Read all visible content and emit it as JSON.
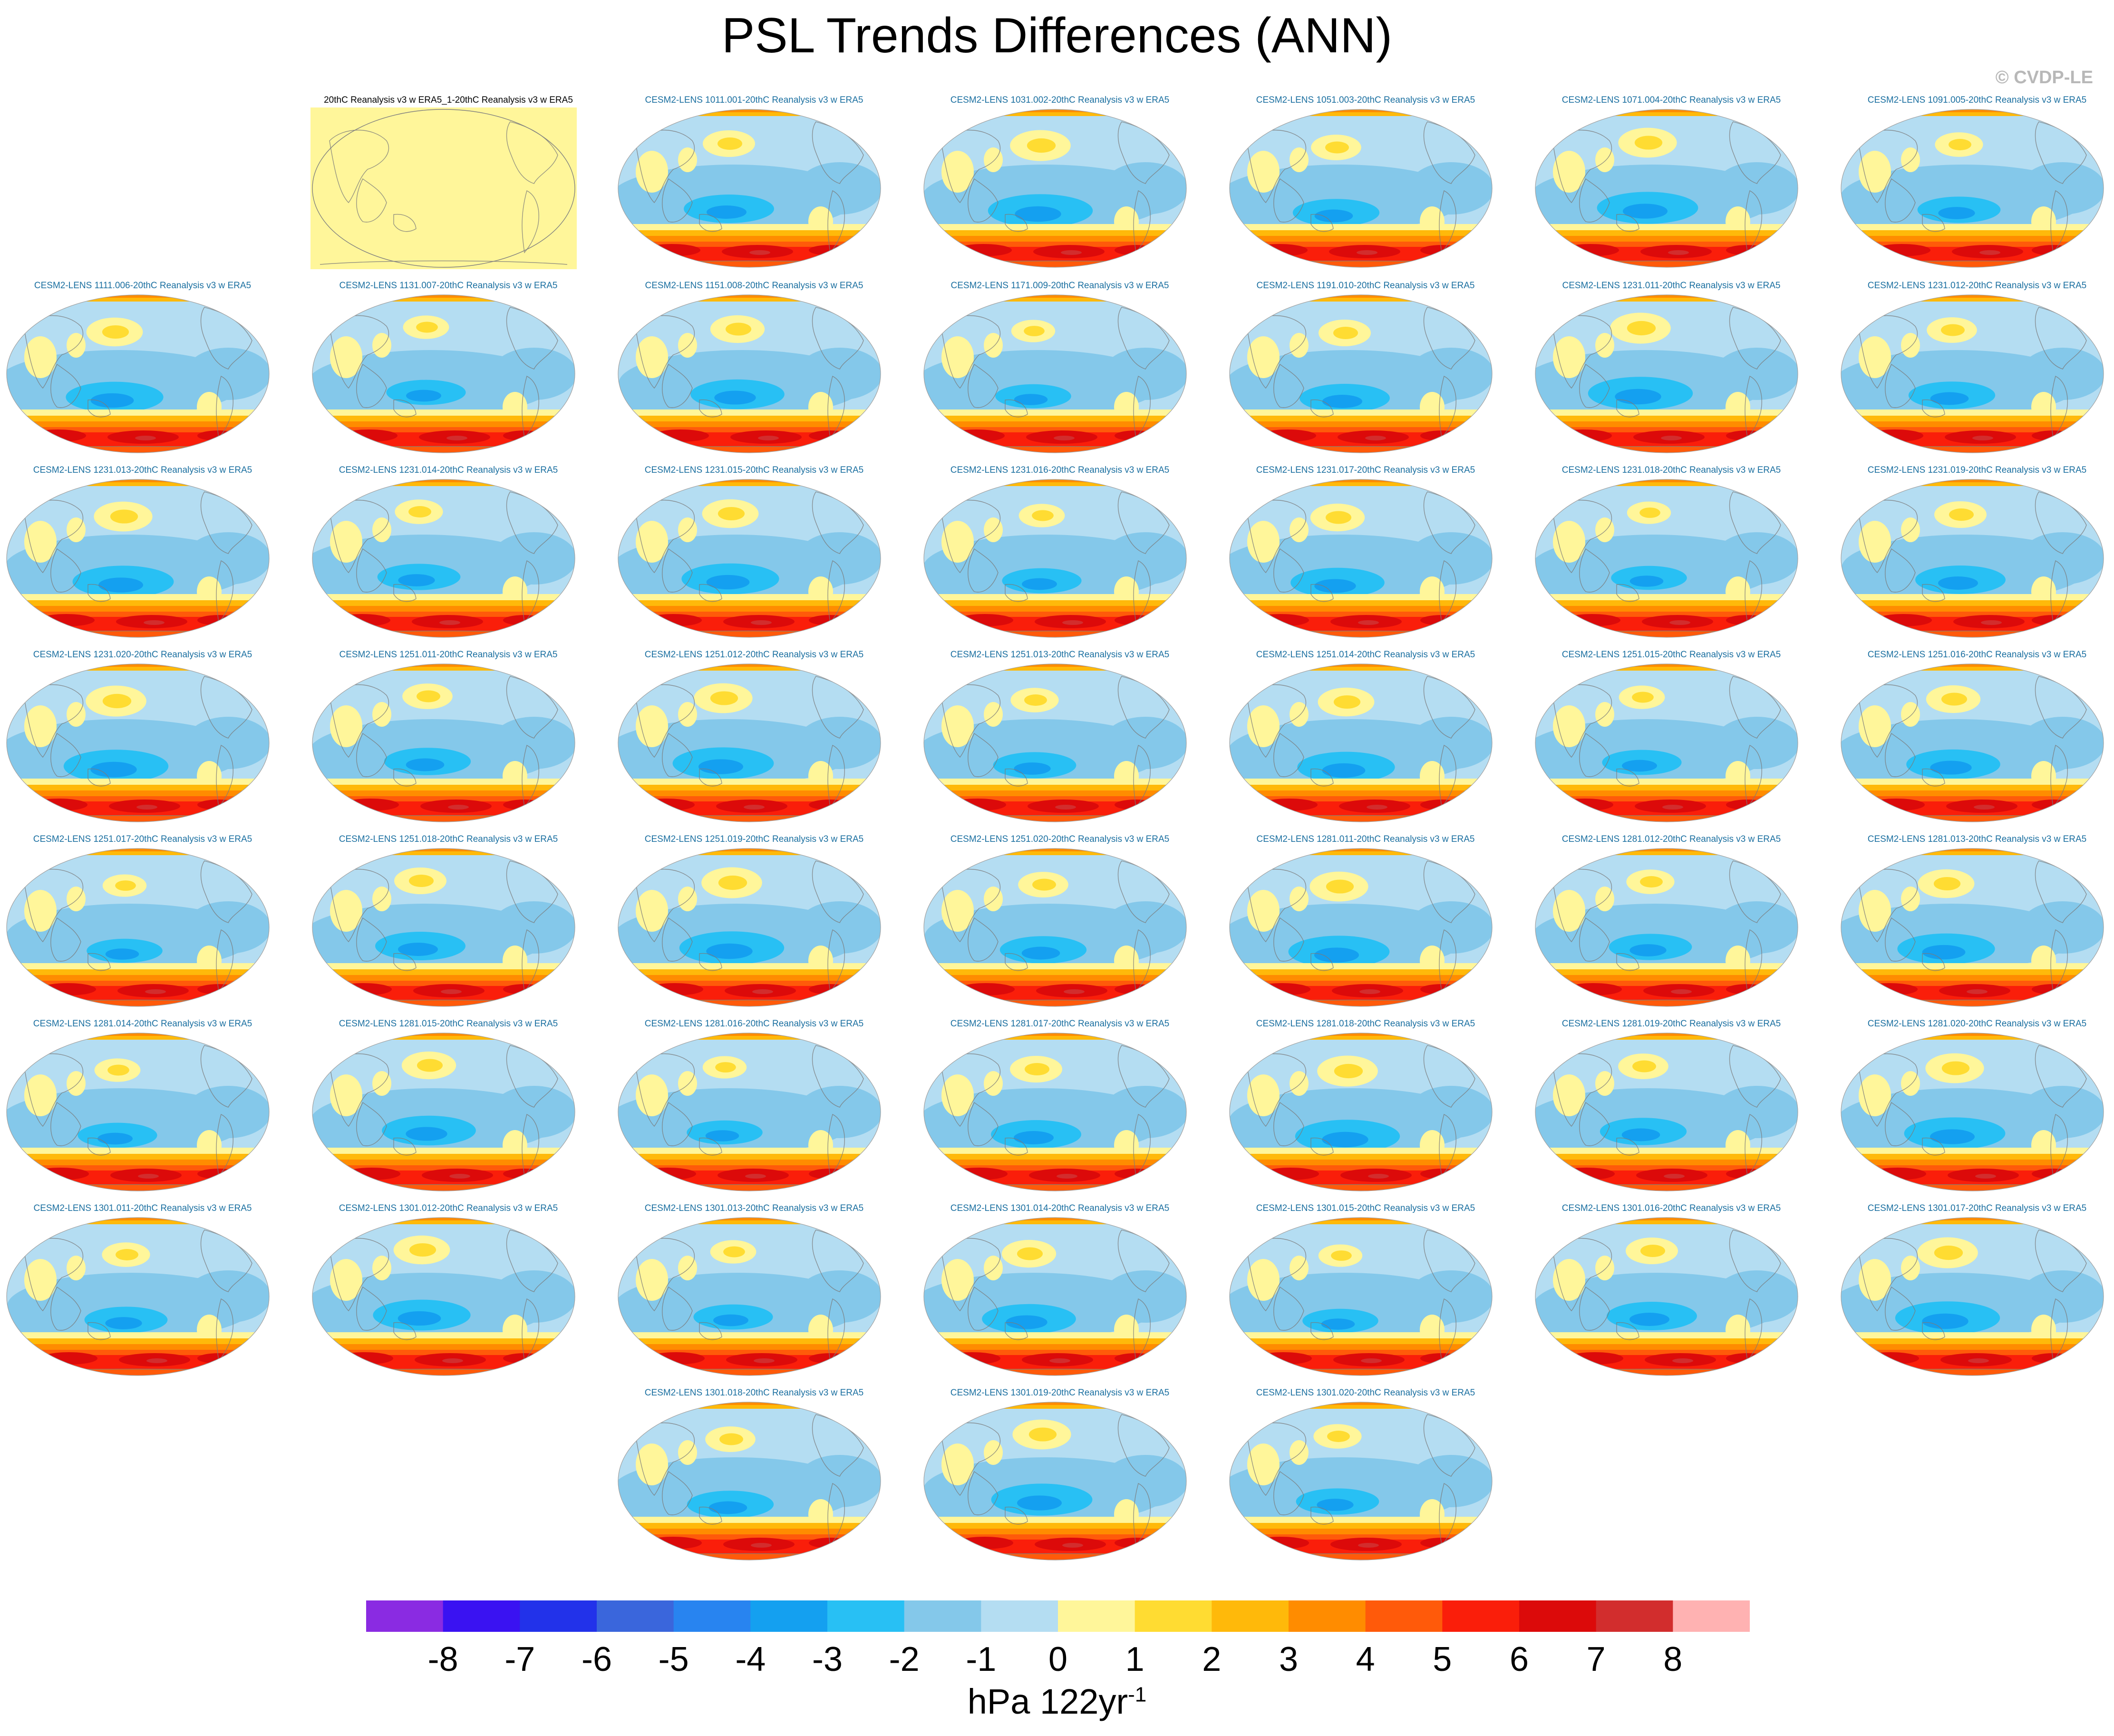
{
  "title": "PSL Trends Differences (ANN)",
  "copyright": "© CVDP-LE",
  "colorbar": {
    "unit": "hPa 122yr",
    "unit_exponent": "-1",
    "ticks": [
      "-8",
      "-7",
      "-6",
      "-5",
      "-4",
      "-3",
      "-2",
      "-1",
      "0",
      "1",
      "2",
      "3",
      "4",
      "5",
      "6",
      "7",
      "8"
    ],
    "colors": [
      "#8a2be2",
      "#3a12f2",
      "#2232ea",
      "#3a66dc",
      "#2884f0",
      "#14a0f0",
      "#28c0f4",
      "#84c8ea",
      "#b4ddf2",
      "#fff69a",
      "#ffdc32",
      "#ffb90a",
      "#ff8c00",
      "#ff5a0a",
      "#fa1e0a",
      "#dc0a0a",
      "#d22d2d",
      "#ffb2b2"
    ]
  },
  "panels": [
    {
      "title": "20thC Reanalysis v3 w ERA5_1-20thC Reanalysis v3 w ERA5",
      "observational": true
    },
    {
      "title": "CESM2-LENS 1011.001-20thC Reanalysis v3 w ERA5"
    },
    {
      "title": "CESM2-LENS 1031.002-20thC Reanalysis v3 w ERA5"
    },
    {
      "title": "CESM2-LENS 1051.003-20thC Reanalysis v3 w ERA5"
    },
    {
      "title": "CESM2-LENS 1071.004-20thC Reanalysis v3 w ERA5"
    },
    {
      "title": "CESM2-LENS 1091.005-20thC Reanalysis v3 w ERA5"
    },
    {
      "title": "CESM2-LENS 1111.006-20thC Reanalysis v3 w ERA5"
    },
    {
      "title": "CESM2-LENS 1131.007-20thC Reanalysis v3 w ERA5"
    },
    {
      "title": "CESM2-LENS 1151.008-20thC Reanalysis v3 w ERA5"
    },
    {
      "title": "CESM2-LENS 1171.009-20thC Reanalysis v3 w ERA5"
    },
    {
      "title": "CESM2-LENS 1191.010-20thC Reanalysis v3 w ERA5"
    },
    {
      "title": "CESM2-LENS 1231.011-20thC Reanalysis v3 w ERA5"
    },
    {
      "title": "CESM2-LENS 1231.012-20thC Reanalysis v3 w ERA5"
    },
    {
      "title": "CESM2-LENS 1231.013-20thC Reanalysis v3 w ERA5"
    },
    {
      "title": "CESM2-LENS 1231.014-20thC Reanalysis v3 w ERA5"
    },
    {
      "title": "CESM2-LENS 1231.015-20thC Reanalysis v3 w ERA5"
    },
    {
      "title": "CESM2-LENS 1231.016-20thC Reanalysis v3 w ERA5"
    },
    {
      "title": "CESM2-LENS 1231.017-20thC Reanalysis v3 w ERA5"
    },
    {
      "title": "CESM2-LENS 1231.018-20thC Reanalysis v3 w ERA5"
    },
    {
      "title": "CESM2-LENS 1231.019-20thC Reanalysis v3 w ERA5"
    },
    {
      "title": "CESM2-LENS 1231.020-20thC Reanalysis v3 w ERA5"
    },
    {
      "title": "CESM2-LENS 1251.011-20thC Reanalysis v3 w ERA5"
    },
    {
      "title": "CESM2-LENS 1251.012-20thC Reanalysis v3 w ERA5"
    },
    {
      "title": "CESM2-LENS 1251.013-20thC Reanalysis v3 w ERA5"
    },
    {
      "title": "CESM2-LENS 1251.014-20thC Reanalysis v3 w ERA5"
    },
    {
      "title": "CESM2-LENS 1251.015-20thC Reanalysis v3 w ERA5"
    },
    {
      "title": "CESM2-LENS 1251.016-20thC Reanalysis v3 w ERA5"
    },
    {
      "title": "CESM2-LENS 1251.017-20thC Reanalysis v3 w ERA5"
    },
    {
      "title": "CESM2-LENS 1251.018-20thC Reanalysis v3 w ERA5"
    },
    {
      "title": "CESM2-LENS 1251.019-20thC Reanalysis v3 w ERA5"
    },
    {
      "title": "CESM2-LENS 1251.020-20thC Reanalysis v3 w ERA5"
    },
    {
      "title": "CESM2-LENS 1281.011-20thC Reanalysis v3 w ERA5"
    },
    {
      "title": "CESM2-LENS 1281.012-20thC Reanalysis v3 w ERA5"
    },
    {
      "title": "CESM2-LENS 1281.013-20thC Reanalysis v3 w ERA5"
    },
    {
      "title": "CESM2-LENS 1281.014-20thC Reanalysis v3 w ERA5"
    },
    {
      "title": "CESM2-LENS 1281.015-20thC Reanalysis v3 w ERA5"
    },
    {
      "title": "CESM2-LENS 1281.016-20thC Reanalysis v3 w ERA5"
    },
    {
      "title": "CESM2-LENS 1281.017-20thC Reanalysis v3 w ERA5"
    },
    {
      "title": "CESM2-LENS 1281.018-20thC Reanalysis v3 w ERA5"
    },
    {
      "title": "CESM2-LENS 1281.019-20thC Reanalysis v3 w ERA5"
    },
    {
      "title": "CESM2-LENS 1281.020-20thC Reanalysis v3 w ERA5"
    },
    {
      "title": "CESM2-LENS 1301.011-20thC Reanalysis v3 w ERA5"
    },
    {
      "title": "CESM2-LENS 1301.012-20thC Reanalysis v3 w ERA5"
    },
    {
      "title": "CESM2-LENS 1301.013-20thC Reanalysis v3 w ERA5"
    },
    {
      "title": "CESM2-LENS 1301.014-20thC Reanalysis v3 w ERA5"
    },
    {
      "title": "CESM2-LENS 1301.015-20thC Reanalysis v3 w ERA5"
    },
    {
      "title": "CESM2-LENS 1301.016-20thC Reanalysis v3 w ERA5"
    },
    {
      "title": "CESM2-LENS 1301.017-20thC Reanalysis v3 w ERA5"
    },
    {
      "title": "CESM2-LENS 1301.018-20thC Reanalysis v3 w ERA5"
    },
    {
      "title": "CESM2-LENS 1301.019-20thC Reanalysis v3 w ERA5"
    },
    {
      "title": "CESM2-LENS 1301.020-20thC Reanalysis v3 w ERA5"
    }
  ]
}
